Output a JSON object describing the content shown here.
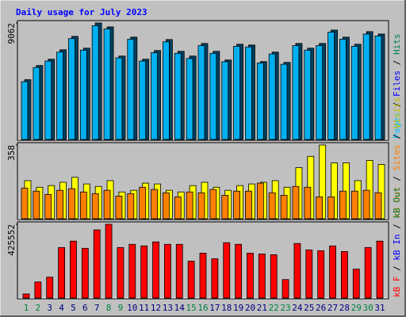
{
  "title": "Daily usage for July 2023",
  "categories": [
    "1",
    "2",
    "3",
    "4",
    "5",
    "6",
    "7",
    "8",
    "9",
    "10",
    "11",
    "12",
    "13",
    "14",
    "15",
    "16",
    "17",
    "18",
    "19",
    "20",
    "21",
    "22",
    "23",
    "24",
    "25",
    "26",
    "27",
    "28",
    "29",
    "30",
    "31"
  ],
  "weekend": [
    true,
    true,
    false,
    false,
    false,
    false,
    false,
    true,
    true,
    false,
    false,
    false,
    false,
    false,
    true,
    true,
    false,
    false,
    false,
    false,
    false,
    true,
    true,
    false,
    false,
    false,
    false,
    false,
    true,
    true,
    false
  ],
  "weekday_color": "#000080",
  "weekend_color": "#008040",
  "chart_data": [
    {
      "type": "bar",
      "ylim": [
        0,
        9062
      ],
      "yticks": [
        9062
      ],
      "separator": " / ",
      "legend": [
        {
          "name": "Pages",
          "color": "#00c0ff"
        },
        {
          "name": "Files",
          "color": "#0000ff"
        },
        {
          "name": "Hits",
          "color": "#00805c"
        }
      ],
      "series": [
        {
          "name": "Hits",
          "color": "#004060",
          "values": [
            4653,
            5756,
            6245,
            6980,
            8021,
            7103,
            9062,
            8756,
            6490,
            7960,
            6245,
            6919,
            7776,
            6858,
            6490,
            7470,
            6858,
            6184,
            7409,
            7348,
            6062,
            6796,
            6000,
            7470,
            7103,
            7470,
            8511,
            7960,
            7409,
            8389,
            8205
          ]
        },
        {
          "name": "Files",
          "color": "#00b0f0",
          "values": [
            4500,
            5600,
            6100,
            6800,
            7850,
            6950,
            8850,
            8600,
            6350,
            7800,
            6100,
            6750,
            7600,
            6700,
            6300,
            7300,
            6700,
            6050,
            7250,
            7200,
            5950,
            6650,
            5850,
            7300,
            6950,
            7300,
            8350,
            7800,
            7250,
            8200,
            8050
          ]
        }
      ]
    },
    {
      "type": "bar",
      "ylim": [
        0,
        358
      ],
      "yticks": [
        358
      ],
      "separator": " / ",
      "legend": [
        {
          "name": "kB Out",
          "color": "#ff8000"
        },
        {
          "name": "Sites",
          "color": "#ff8000"
        },
        {
          "name": "Visits",
          "color": "#c0c000"
        }
      ],
      "series": [
        {
          "name": "Visits",
          "color": "#ffff00",
          "values": [
            185,
            153,
            161,
            177,
            201,
            169,
            157,
            185,
            130,
            138,
            173,
            169,
            138,
            130,
            161,
            177,
            153,
            138,
            161,
            169,
            177,
            185,
            153,
            248,
            303,
            358,
            271,
            271,
            185,
            283,
            264
          ]
        },
        {
          "name": "Sites",
          "color": "#ff8000",
          "values": [
            149,
            134,
            118,
            138,
            146,
            130,
            122,
            138,
            110,
            122,
            153,
            142,
            126,
            106,
            130,
            126,
            142,
            114,
            134,
            134,
            173,
            126,
            114,
            157,
            153,
            106,
            106,
            134,
            134,
            138,
            126
          ]
        }
      ]
    },
    {
      "type": "bar",
      "ylim": [
        0,
        425552
      ],
      "yticks": [
        425552
      ],
      "separator": " / ",
      "legend": [
        {
          "name": "kB F",
          "color": "#ff0000"
        },
        {
          "name": "kB In",
          "color": "#0000ff"
        },
        {
          "name": "kB Out",
          "color": "#008040"
        }
      ],
      "series": [
        {
          "name": "kB F",
          "color": "#ff0000",
          "values": [
            23128,
            92512,
            120266,
            291413,
            328418,
            286787,
            393176,
            425552,
            291413,
            309915,
            300664,
            323792,
            309915,
            309915,
            212778,
            259034,
            226654,
            319166,
            309915,
            259034,
            254408,
            249782,
            106389,
            314541,
            277536,
            272910,
            300664,
            268285,
            166522,
            291413,
            328418
          ]
        }
      ]
    }
  ]
}
